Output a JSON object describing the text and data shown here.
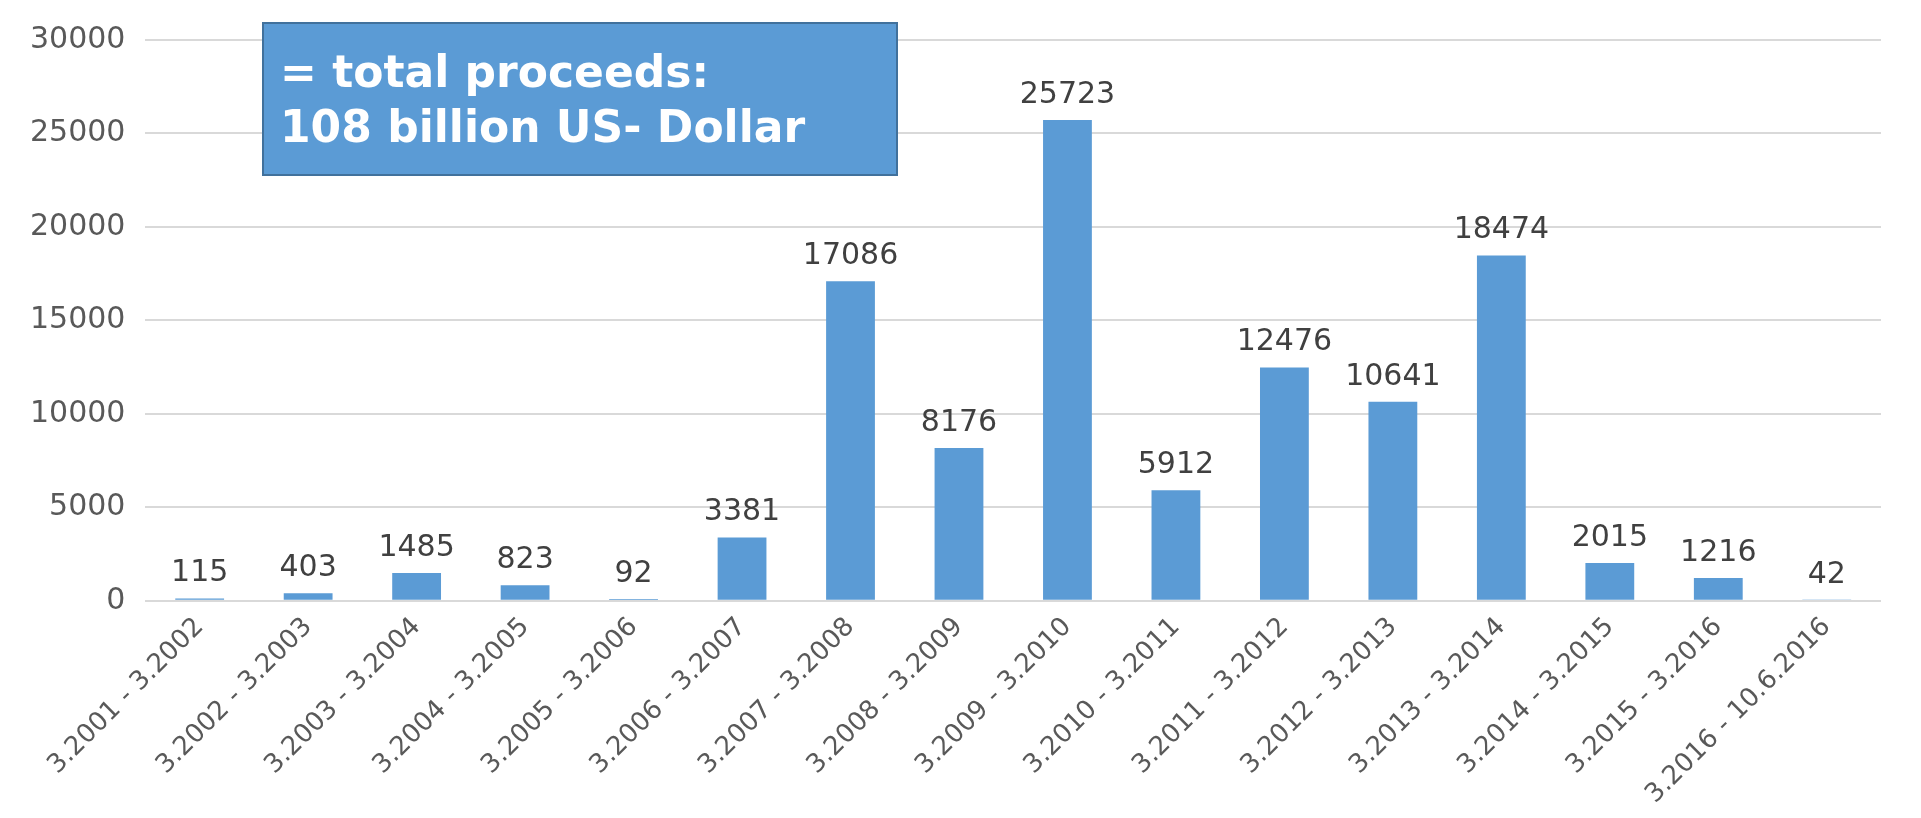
{
  "chart_data": {
    "type": "bar",
    "categories": [
      "3.2001 - 3.2002",
      "3.2002 - 3.2003",
      "3.2003 - 3.2004",
      "3.2004 - 3.2005",
      "3.2005 - 3.2006",
      "3.2006 - 3.2007",
      "3.2007 - 3.2008",
      "3.2008 - 3.2009",
      "3.2009 - 3.2010",
      "3.2010 - 3.2011",
      "3.2011 - 3.2012",
      "3.2012 - 3.2013",
      "3.2013 - 3.2014",
      "3.2014 - 3.2015",
      "3.2015 - 3.2016",
      "3.2016 - 10.6.2016"
    ],
    "values": [
      115,
      403,
      1485,
      823,
      92,
      3381,
      17086,
      8176,
      25723,
      5912,
      12476,
      10641,
      18474,
      2015,
      1216,
      42
    ],
    "color": "#5b9bd5",
    "ylim": [
      0,
      30000
    ],
    "yticks": [
      0,
      5000,
      10000,
      15000,
      20000,
      25000,
      30000
    ],
    "grid": "y",
    "legend": false,
    "data_labels": true,
    "annotations": [
      "= total proceeds:\n108 billion US- Dollar"
    ]
  }
}
